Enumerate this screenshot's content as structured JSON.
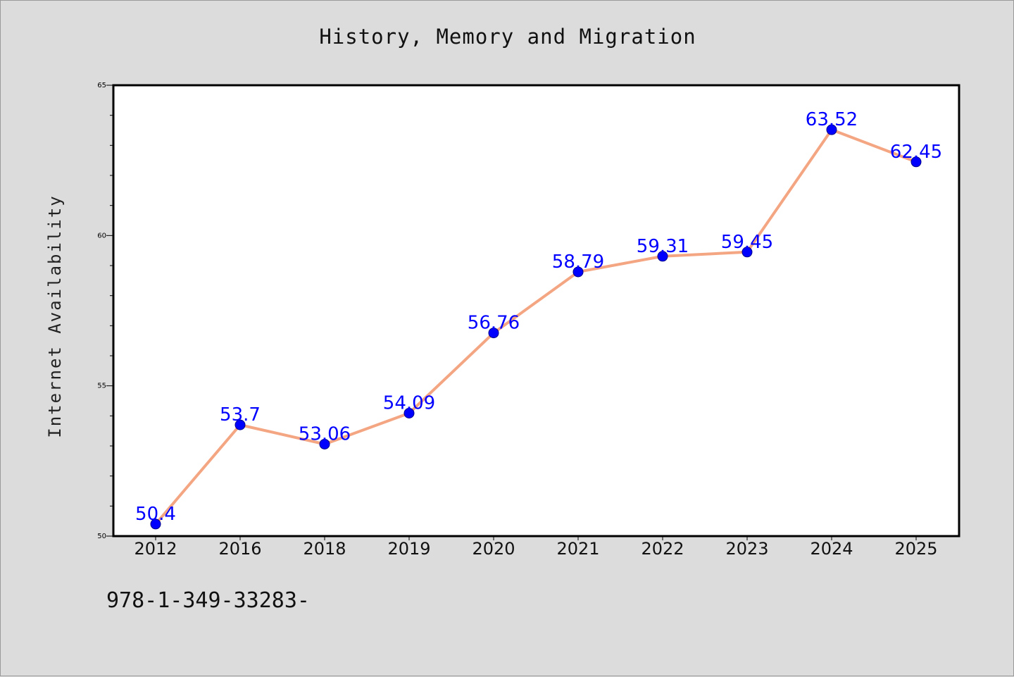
{
  "chart_data": {
    "type": "line",
    "title": "History, Memory and Migration",
    "xlabel": "",
    "ylabel": "Internet Availability",
    "categories": [
      "2012",
      "2016",
      "2018",
      "2019",
      "2020",
      "2021",
      "2022",
      "2023",
      "2024",
      "2025"
    ],
    "series": [
      {
        "values": [
          50.4,
          53.7,
          53.06,
          54.09,
          56.76,
          58.79,
          59.31,
          59.45,
          63.52,
          62.45
        ],
        "data_labels": [
          "50.4",
          "53.7",
          "53.06",
          "54.09",
          "56.76",
          "58.79",
          "59.31",
          "59.45",
          "63.52",
          "62.45"
        ]
      }
    ],
    "ylim": [
      50,
      65
    ],
    "yticks": [
      "50",
      "55",
      "60",
      "65"
    ],
    "grid": false,
    "colors": {
      "line": "#f4a582",
      "marker": "#0000ff",
      "label": "#0000ff",
      "background": "#dcdcdc",
      "plot_background": "#ffffff"
    }
  },
  "footer": {
    "code": "978-1-349-33283-"
  }
}
